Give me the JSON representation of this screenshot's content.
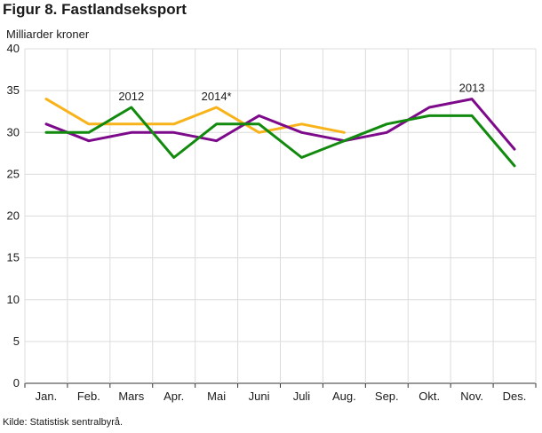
{
  "chart_data": {
    "type": "line",
    "title": "Figur 8. Fastlandseksport",
    "ylabel": "Milliarder kroner",
    "xlabel": "",
    "source": "Kilde: Statistisk sentralbyrå.",
    "categories": [
      "Jan.",
      "Feb.",
      "Mars",
      "Apr.",
      "Mai",
      "Juni",
      "Juli",
      "Aug.",
      "Sep.",
      "Okt.",
      "Nov.",
      "Des."
    ],
    "ylim": [
      0,
      40
    ],
    "yticks": [
      0,
      5,
      10,
      15,
      20,
      25,
      30,
      35,
      40
    ],
    "grid": true,
    "legend": "none",
    "series": [
      {
        "name": "2014*",
        "color": "#f9b31a",
        "values": [
          34,
          31,
          31,
          31,
          33,
          30,
          31,
          30,
          null,
          null,
          null,
          null
        ],
        "label_index": 4
      },
      {
        "name": "2013",
        "color": "#7d0a8a",
        "values": [
          31,
          29,
          30,
          30,
          29,
          32,
          30,
          29,
          30,
          33,
          34,
          28
        ],
        "label_index": 10
      },
      {
        "name": "2012",
        "color": "#118a0e",
        "values": [
          30,
          30,
          33,
          27,
          31,
          31,
          27,
          29,
          31,
          32,
          32,
          26
        ],
        "label_index": 2
      }
    ]
  }
}
